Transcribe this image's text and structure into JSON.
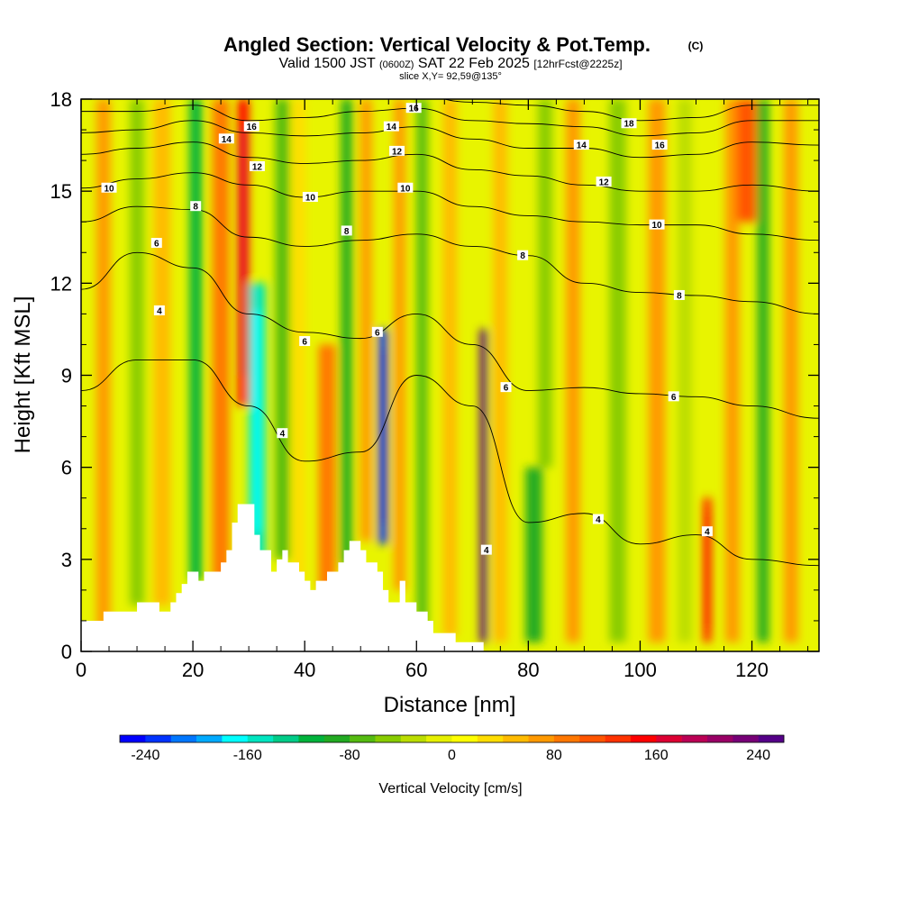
{
  "chart_data": {
    "type": "heatmap",
    "title": "Angled Section: Vertical Velocity & Pot.Temp.",
    "title_suffix": "(C)",
    "subtitle_main_a": "Valid 1500 JST",
    "subtitle_small_a": "(0600Z)",
    "subtitle_main_b": "SAT 22 Feb 2025",
    "subtitle_small_b": "[12hrFcst@2225z]",
    "subtitle_line2": "slice X,Y= 92,59@135°",
    "xlabel": "Distance [nm]",
    "ylabel": "Height [Kft MSL]",
    "xlim": [
      0,
      132
    ],
    "ylim": [
      0,
      18
    ],
    "x_ticks": [
      0,
      20,
      40,
      60,
      80,
      100,
      120
    ],
    "x_tick_labels": [
      "0",
      "20",
      "40",
      "60",
      "80",
      "100",
      "120"
    ],
    "y_ticks": [
      0,
      3,
      6,
      9,
      12,
      15,
      18
    ],
    "y_tick_labels": [
      "0",
      "3",
      "6",
      "9",
      "12",
      "15",
      "18"
    ],
    "colorbar": {
      "label": "Vertical Velocity [cm/s]",
      "min": -260,
      "max": 260,
      "step": 20,
      "tick_values": [
        -240,
        -160,
        -80,
        0,
        80,
        160,
        240
      ],
      "tick_labels": [
        "-240",
        "-160",
        "-80",
        "0",
        "80",
        "160",
        "240"
      ],
      "colors": [
        "#0000ff",
        "#0033ff",
        "#0077ff",
        "#00aaff",
        "#00ffff",
        "#00e5c0",
        "#00cc88",
        "#00b33c",
        "#22aa22",
        "#55bb11",
        "#88cc00",
        "#bbdd00",
        "#e6f000",
        "#ffff00",
        "#ffdd00",
        "#ffbb00",
        "#ff9900",
        "#ff7700",
        "#ff5500",
        "#ff3300",
        "#ff0000",
        "#dd0033",
        "#bb0055",
        "#990066",
        "#770077",
        "#550088"
      ]
    },
    "velocity_bands": [
      {
        "x": 4,
        "w": 2.5,
        "y0": 0.5,
        "y1": 18,
        "v": 60
      },
      {
        "x": 10,
        "w": 2.5,
        "y0": 1.5,
        "y1": 18,
        "v": -60
      },
      {
        "x": 14.5,
        "w": 3,
        "y0": 1.5,
        "y1": 18,
        "v": 55
      },
      {
        "x": 20.5,
        "w": 2.2,
        "y0": 2.3,
        "y1": 18,
        "v": -110
      },
      {
        "x": 25,
        "w": 3,
        "y0": 2.3,
        "y1": 18,
        "v": 95
      },
      {
        "x": 29,
        "w": 2,
        "y0": 8,
        "y1": 18,
        "v": 150
      },
      {
        "x": 31.5,
        "w": 3,
        "y0": 3,
        "y1": 12,
        "v": -150
      },
      {
        "x": 36,
        "w": 2.5,
        "y0": 3,
        "y1": 18,
        "v": -75
      },
      {
        "x": 39,
        "w": 2.2,
        "y0": 2.3,
        "y1": 18,
        "v": 30
      },
      {
        "x": 44,
        "w": 3,
        "y0": 2,
        "y1": 10,
        "v": 90
      },
      {
        "x": 47.5,
        "w": 2,
        "y0": 2.8,
        "y1": 18,
        "v": -90
      },
      {
        "x": 51,
        "w": 2,
        "y0": 3.6,
        "y1": 18,
        "v": 60
      },
      {
        "x": 54,
        "w": 1.6,
        "y0": 3.5,
        "y1": 10.5,
        "v": -240
      },
      {
        "x": 57,
        "w": 2,
        "y0": 2,
        "y1": 18,
        "v": 75
      },
      {
        "x": 61,
        "w": 2,
        "y0": 0.8,
        "y1": 18,
        "v": -75
      },
      {
        "x": 66,
        "w": 2.5,
        "y0": 0.5,
        "y1": 18,
        "v": 45
      },
      {
        "x": 72,
        "w": 1.3,
        "y0": 0.3,
        "y1": 10.5,
        "v": 250
      },
      {
        "x": 75,
        "w": 2.5,
        "y0": 0.3,
        "y1": 18,
        "v": 55
      },
      {
        "x": 81,
        "w": 3,
        "y0": 0.3,
        "y1": 6,
        "v": -85
      },
      {
        "x": 83,
        "w": 2.5,
        "y0": 6,
        "y1": 18,
        "v": -50
      },
      {
        "x": 88,
        "w": 2.5,
        "y0": 0.3,
        "y1": 18,
        "v": 65
      },
      {
        "x": 96,
        "w": 3,
        "y0": 0.3,
        "y1": 18,
        "v": -55
      },
      {
        "x": 103,
        "w": 3,
        "y0": 0.3,
        "y1": 18,
        "v": 60
      },
      {
        "x": 108,
        "w": 2.5,
        "y0": 0.3,
        "y1": 18,
        "v": -40
      },
      {
        "x": 112,
        "w": 1.6,
        "y0": 0.3,
        "y1": 5,
        "v": 135
      },
      {
        "x": 116.5,
        "w": 2.5,
        "y0": 0.3,
        "y1": 18,
        "v": 60
      },
      {
        "x": 122,
        "w": 2,
        "y0": 0.3,
        "y1": 18,
        "v": -95
      },
      {
        "x": 127,
        "w": 2.5,
        "y0": 0.3,
        "y1": 18,
        "v": 65
      },
      {
        "x": 119,
        "w": 3.5,
        "y0": 14,
        "y1": 18,
        "v": 110
      }
    ],
    "terrain": {
      "x": [
        0,
        4,
        4,
        10,
        10,
        14,
        14,
        16,
        16,
        17,
        17,
        18,
        18,
        19,
        19,
        21,
        21,
        22,
        22,
        25,
        25,
        26,
        26,
        27,
        27,
        28,
        28,
        31,
        31,
        32,
        32,
        34,
        34,
        35,
        35,
        36,
        36,
        37,
        37,
        39,
        39,
        40,
        40,
        41,
        41,
        42,
        42,
        44,
        44,
        46,
        46,
        47,
        47,
        48,
        48,
        49,
        49,
        50,
        50,
        51,
        51,
        53,
        53,
        54,
        54,
        55,
        55,
        57,
        57,
        58,
        58,
        60,
        60,
        62,
        62,
        63,
        63,
        67,
        67,
        72,
        72
      ],
      "y": [
        1.0,
        1.0,
        1.3,
        1.3,
        1.6,
        1.6,
        1.3,
        1.3,
        1.6,
        1.6,
        1.9,
        1.9,
        2.2,
        2.2,
        2.6,
        2.6,
        2.3,
        2.3,
        2.6,
        2.6,
        2.9,
        2.9,
        3.3,
        3.3,
        4.2,
        4.2,
        4.8,
        4.8,
        3.8,
        3.8,
        3.3,
        3.3,
        2.6,
        2.6,
        3.0,
        3.0,
        3.3,
        3.3,
        2.9,
        2.9,
        2.6,
        2.6,
        2.3,
        2.3,
        2.0,
        2.0,
        2.3,
        2.3,
        2.6,
        2.6,
        2.9,
        2.9,
        3.3,
        3.3,
        3.6,
        3.6,
        3.6,
        3.6,
        3.3,
        3.3,
        2.9,
        2.9,
        2.6,
        2.6,
        2.0,
        2.0,
        1.6,
        1.6,
        2.3,
        2.3,
        1.6,
        1.6,
        1.3,
        1.3,
        1.0,
        1.0,
        0.6,
        0.6,
        0.3,
        0.3,
        0.0
      ]
    },
    "contours": [
      {
        "label": "4",
        "x": [
          0,
          10,
          20,
          30,
          40,
          50,
          60,
          70,
          80,
          90,
          100,
          110,
          120,
          132
        ],
        "y": [
          8.5,
          9.5,
          9.5,
          8,
          6.2,
          6.5,
          9,
          8,
          4.2,
          4.5,
          3.5,
          3.8,
          3.0,
          2.8
        ],
        "labels_at": [
          [
            14,
            11.1
          ],
          [
            36,
            7.1
          ],
          [
            72.5,
            3.3
          ],
          [
            92.5,
            4.3
          ],
          [
            112,
            3.9
          ]
        ]
      },
      {
        "label": "6",
        "x": [
          0,
          10,
          20,
          30,
          40,
          50,
          60,
          70,
          80,
          90,
          100,
          110,
          120,
          132
        ],
        "y": [
          11.8,
          13.0,
          12.5,
          11,
          10.4,
          10.2,
          11,
          10,
          8.5,
          8.6,
          8.4,
          8.3,
          8.0,
          7.6
        ],
        "labels_at": [
          [
            13.5,
            13.3
          ],
          [
            40,
            10.1
          ],
          [
            53,
            10.4
          ],
          [
            76,
            8.6
          ],
          [
            106,
            8.3
          ]
        ]
      },
      {
        "label": "8",
        "x": [
          0,
          10,
          20,
          30,
          40,
          50,
          60,
          70,
          80,
          90,
          100,
          110,
          120,
          132
        ],
        "y": [
          14.0,
          14.5,
          14.4,
          13.5,
          13.2,
          13.4,
          13.6,
          13.2,
          12.9,
          12.0,
          11.7,
          11.6,
          11.4,
          11.0
        ],
        "labels_at": [
          [
            20.5,
            14.5
          ],
          [
            47.5,
            13.7
          ],
          [
            79,
            12.9
          ],
          [
            107,
            11.6
          ]
        ]
      },
      {
        "label": "10",
        "x": [
          0,
          10,
          20,
          30,
          40,
          50,
          60,
          70,
          80,
          90,
          100,
          110,
          120,
          132
        ],
        "y": [
          15.1,
          15.4,
          15.6,
          15.2,
          14.8,
          15.0,
          15.0,
          14.5,
          14.2,
          14.0,
          13.9,
          13.9,
          13.6,
          13.4
        ],
        "labels_at": [
          [
            5,
            15.1
          ],
          [
            41,
            14.8
          ],
          [
            58,
            15.1
          ],
          [
            103,
            13.9
          ]
        ]
      },
      {
        "label": "12",
        "x": [
          0,
          10,
          20,
          30,
          40,
          50,
          60,
          70,
          80,
          90,
          100,
          110,
          120,
          132
        ],
        "y": [
          16.2,
          16.4,
          16.6,
          16.1,
          15.9,
          16.0,
          16.2,
          15.7,
          15.5,
          15.2,
          15.0,
          15.0,
          15.2,
          15.0
        ],
        "labels_at": [
          [
            31.5,
            15.8
          ],
          [
            56.5,
            16.3
          ],
          [
            93.5,
            15.3
          ]
        ]
      },
      {
        "label": "14",
        "x": [
          0,
          10,
          20,
          30,
          40,
          50,
          60,
          70,
          80,
          90,
          100,
          110,
          120,
          132
        ],
        "y": [
          16.9,
          17.0,
          17.3,
          16.9,
          16.8,
          16.9,
          17.1,
          16.7,
          16.4,
          16.4,
          16.1,
          16.2,
          16.6,
          16.5
        ],
        "labels_at": [
          [
            26,
            16.7
          ],
          [
            55.5,
            17.1
          ],
          [
            89.5,
            16.5
          ]
        ]
      },
      {
        "label": "16",
        "x": [
          0,
          10,
          20,
          30,
          40,
          50,
          60,
          70,
          80,
          90,
          100,
          110,
          120,
          132
        ],
        "y": [
          17.6,
          17.6,
          17.8,
          17.3,
          17.4,
          17.6,
          17.7,
          17.3,
          17.2,
          17.1,
          16.8,
          16.9,
          17.3,
          17.3
        ],
        "labels_at": [
          [
            30.5,
            17.1
          ],
          [
            59.5,
            17.7
          ],
          [
            103.5,
            16.5
          ]
        ]
      },
      {
        "label": "18",
        "x": [
          60,
          70,
          80,
          90,
          100,
          110,
          120,
          132
        ],
        "y": [
          18.1,
          17.9,
          17.8,
          17.6,
          17.3,
          17.4,
          17.8,
          17.8
        ],
        "labels_at": [
          [
            98,
            17.2
          ]
        ]
      }
    ]
  }
}
